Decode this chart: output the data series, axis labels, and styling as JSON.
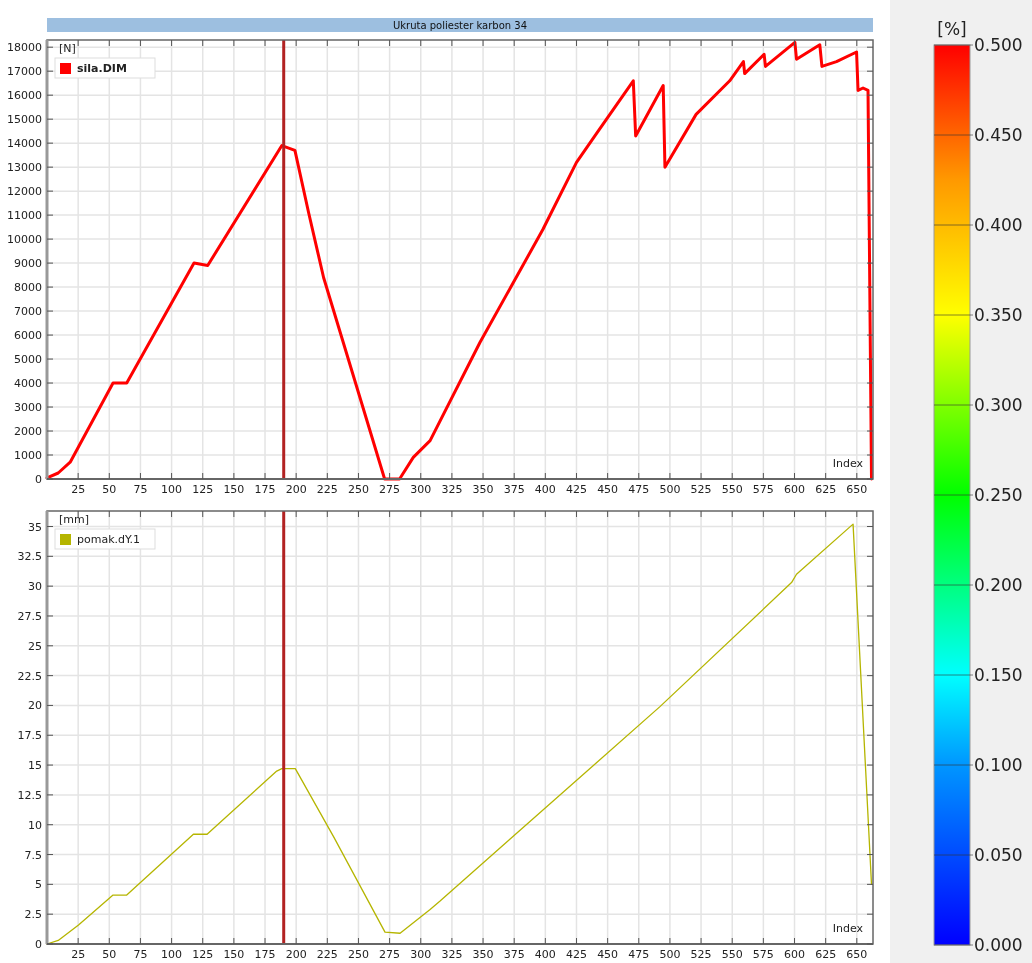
{
  "chart_data": [
    {
      "type": "line",
      "title": "Ukruta poliester karbon 34",
      "clabel": "[%]",
      "clim": [
        0,
        0.5
      ],
      "cticks": [
        {
          "value": 0,
          "label": "0.000"
        },
        {
          "value": 0.05,
          "label": "0.050"
        },
        {
          "value": 0.1,
          "label": "0.100"
        },
        {
          "value": 0.15,
          "label": "0.150"
        },
        {
          "value": 0.2,
          "label": "0.200"
        },
        {
          "value": 0.25,
          "label": "0.250"
        },
        {
          "value": 0.3,
          "label": "0.300"
        },
        {
          "value": 0.35,
          "label": "0.350"
        },
        {
          "value": 0.4,
          "label": "0.400"
        },
        {
          "value": 0.45,
          "label": "0.450"
        },
        {
          "value": 0.5,
          "label": "0.500"
        }
      ],
      "ylabel": "[N]",
      "xlabel": "Index",
      "xlim": [
        0,
        663
      ],
      "xticks": [
        25,
        50,
        75,
        100,
        125,
        150,
        175,
        200,
        225,
        250,
        275,
        300,
        325,
        350,
        375,
        400,
        425,
        450,
        475,
        500,
        525,
        550,
        575,
        600,
        625,
        650
      ],
      "ylim": [
        0,
        18300
      ],
      "yticks": [
        0,
        1000,
        2000,
        3000,
        4000,
        5000,
        6000,
        7000,
        8000,
        9000,
        10000,
        11000,
        12000,
        13000,
        14000,
        15000,
        16000,
        17000,
        18000
      ],
      "grid": true,
      "legend": "top left",
      "marker": "none",
      "line_style": "solid",
      "ref_lines": [
        {
          "axis": "x",
          "value": 190,
          "color": "#b22222"
        }
      ],
      "series": [
        {
          "name": "sila.DIM",
          "color": "#ff0000",
          "x": [
            0,
            9,
            18.6,
            53,
            64,
            118,
            129,
            188.5,
            199,
            210,
            222,
            271,
            283,
            294,
            307.5,
            347.6,
            398,
            425,
            441,
            470.6,
            472.5,
            494.6,
            496,
            521,
            548,
            559,
            560,
            575.6,
            576.7,
            600.3,
            601.6,
            620.3,
            622,
            633.7,
            649.8,
            651,
            655,
            659,
            661.8
          ],
          "values": [
            50,
            250,
            700,
            4000,
            4000,
            9000,
            8900,
            13900,
            13700,
            11100,
            8400,
            0,
            0,
            900,
            1600,
            5700,
            10400,
            13200,
            14400,
            16600,
            14300,
            16400,
            13000,
            15200,
            16600,
            17400,
            16900,
            17700,
            17200,
            18200,
            17500,
            18100,
            17200,
            17400,
            17800,
            16200,
            16300,
            16200,
            0
          ]
        }
      ]
    },
    {
      "type": "line",
      "ylabel": "[mm]",
      "xlabel": "Index",
      "xlim": [
        0,
        663
      ],
      "xticks": [
        25,
        50,
        75,
        100,
        125,
        150,
        175,
        200,
        225,
        250,
        275,
        300,
        325,
        350,
        375,
        400,
        425,
        450,
        475,
        500,
        525,
        550,
        575,
        600,
        625,
        650
      ],
      "ylim": [
        0,
        36.3
      ],
      "yticks": [
        0,
        2.5,
        5,
        7.5,
        10,
        12.5,
        15,
        17.5,
        20,
        22.5,
        25,
        27.5,
        30,
        32.5,
        35
      ],
      "grid": true,
      "legend": "top left",
      "marker": "none",
      "line_style": "solid",
      "ref_lines": [
        {
          "axis": "x",
          "value": 190,
          "color": "#b22222"
        }
      ],
      "series": [
        {
          "name": "pomak.dY.1",
          "color": "#b5b500",
          "x": [
            0,
            9,
            25.3,
            53,
            64,
            117.5,
            128.5,
            184.4,
            188.5,
            199.3,
            230,
            271.3,
            283.4,
            307.5,
            315.5,
            492,
            597.6,
            601.6,
            647,
            656.5,
            659,
            661.8
          ],
          "values": [
            0,
            0.3,
            1.6,
            4.1,
            4.1,
            9.2,
            9.2,
            14.5,
            14.7,
            14.7,
            9,
            1,
            0.9,
            2.9,
            3.6,
            19.9,
            30.3,
            31,
            35.2,
            null,
            null,
            5
          ]
        }
      ]
    }
  ]
}
